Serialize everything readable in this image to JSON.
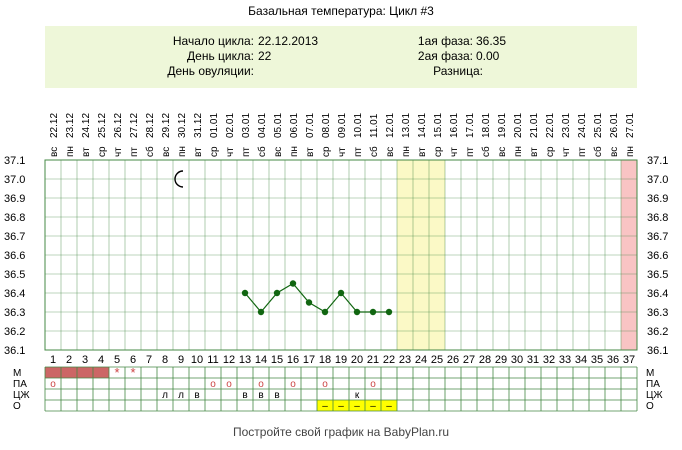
{
  "title": "Базальная температура: Цикл #3",
  "info": {
    "cycle_start_label": "Начало цикла:",
    "cycle_start_value": "22.12.2013",
    "cycle_day_label": "День цикла:",
    "cycle_day_value": "22",
    "ovulation_day_label": "День овуляции:",
    "ovulation_day_value": "",
    "phase1_label": "1ая фаза:",
    "phase1_value": "36.35",
    "phase2_label": "2ая фаза:",
    "phase2_value": "0.00",
    "difference_label": "Разница:",
    "difference_value": ""
  },
  "footer": "Постройте свой график на BabyPlan.ru",
  "colors": {
    "grid": "#448844",
    "info_bg": "#eef7d9",
    "line": "#116611",
    "highlight_yellow": "#fbf9c6",
    "highlight_pink": "#f9c4c4",
    "menses": "#cc6666",
    "marker_red": "#cc4444",
    "dash_yellow": "#ffff00"
  },
  "chart_data": {
    "type": "line",
    "days": [
      1,
      2,
      3,
      4,
      5,
      6,
      7,
      8,
      9,
      10,
      11,
      12,
      13,
      14,
      15,
      16,
      17,
      18,
      19,
      20,
      21,
      22,
      23,
      24,
      25,
      26,
      27,
      28,
      29,
      30,
      31,
      32,
      33,
      34,
      35,
      36,
      37
    ],
    "dates": [
      "22.12",
      "23.12",
      "24.12",
      "25.12",
      "26.12",
      "27.12",
      "28.12",
      "29.12",
      "30.12",
      "31.12",
      "01.01",
      "02.01",
      "03.01",
      "04.01",
      "05.01",
      "06.01",
      "07.01",
      "08.01",
      "09.01",
      "10.01",
      "11.01",
      "12.01",
      "13.01",
      "14.01",
      "15.01",
      "16.01",
      "17.01",
      "18.01",
      "19.01",
      "20.01",
      "21.01",
      "22.01",
      "23.01",
      "24.01",
      "25.01",
      "26.01",
      "27.01"
    ],
    "weekdays": [
      "вс",
      "пн",
      "вт",
      "ср",
      "чт",
      "пт",
      "сб",
      "вс",
      "пн",
      "вт",
      "ср",
      "чт",
      "пт",
      "сб",
      "вс",
      "пн",
      "вт",
      "ср",
      "чт",
      "пт",
      "сб",
      "вс",
      "пн",
      "вт",
      "ср",
      "чт",
      "пт",
      "сб",
      "вс",
      "пн",
      "вт",
      "ср",
      "чт",
      "пт",
      "сб",
      "вс",
      "пн"
    ],
    "temperatures": [
      null,
      null,
      null,
      null,
      null,
      null,
      null,
      null,
      null,
      null,
      null,
      null,
      36.4,
      36.3,
      36.4,
      36.45,
      36.35,
      36.3,
      36.4,
      36.3,
      36.3,
      36.3,
      null,
      null,
      null,
      null,
      null,
      null,
      null,
      null,
      null,
      null,
      null,
      null,
      null,
      null,
      null
    ],
    "y_ticks": [
      "37.1",
      "37.0",
      "36.9",
      "36.8",
      "36.7",
      "36.6",
      "36.5",
      "36.4",
      "36.3",
      "36.2",
      "36.1"
    ],
    "ylim": [
      36.1,
      37.1
    ],
    "highlight_yellow_days": [
      23,
      24,
      25
    ],
    "highlight_pink_days": [
      37
    ],
    "moon_day": 9,
    "moon_temp": 37.0,
    "row_labels": [
      "М",
      "ПА",
      "ЦЖ",
      "О"
    ],
    "rows": {
      "menses_days": [
        1,
        2,
        3,
        4
      ],
      "menses_star_days": [
        5,
        6
      ],
      "menses_star_symbol": "*",
      "pa_marks": [
        {
          "day": 1,
          "symbol": "o"
        },
        {
          "day": 11,
          "symbol": "o"
        },
        {
          "day": 12,
          "symbol": "o"
        },
        {
          "day": 14,
          "symbol": "o"
        },
        {
          "day": 16,
          "symbol": "o"
        },
        {
          "day": 18,
          "symbol": "o"
        },
        {
          "day": 21,
          "symbol": "o"
        }
      ],
      "cz_marks": [
        {
          "day": 8,
          "symbol": "л"
        },
        {
          "day": 9,
          "symbol": "л"
        },
        {
          "day": 10,
          "symbol": "в"
        },
        {
          "day": 13,
          "symbol": "в"
        },
        {
          "day": 14,
          "symbol": "в"
        },
        {
          "day": 15,
          "symbol": "в"
        },
        {
          "day": 20,
          "symbol": "к"
        }
      ],
      "o_marks": [
        {
          "day": 18,
          "symbol": "–"
        },
        {
          "day": 19,
          "symbol": "–"
        },
        {
          "day": 20,
          "symbol": "–"
        },
        {
          "day": 21,
          "symbol": "–"
        },
        {
          "day": 22,
          "symbol": "–"
        }
      ]
    }
  }
}
